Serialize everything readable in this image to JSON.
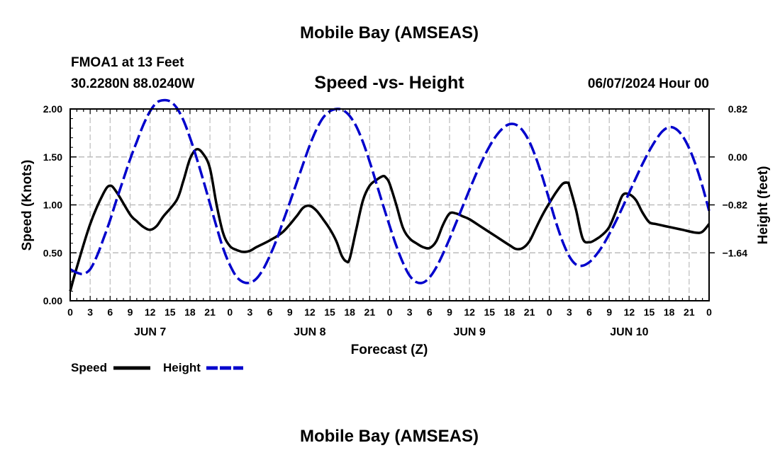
{
  "header": {
    "title": "Mobile Bay (AMSEAS)",
    "station": "FMOA1 at 13 Feet",
    "coords": "30.2280N  88.0240W",
    "chart_title": "Speed -vs- Height",
    "run_time": "06/07/2024 Hour 00",
    "footer_title": "Mobile Bay (AMSEAS)"
  },
  "legend": {
    "items": [
      {
        "label": "Speed",
        "color": "#000000",
        "style": "solid"
      },
      {
        "label": "Height",
        "color": "#0000cc",
        "style": "dashed"
      }
    ]
  },
  "chart_data": {
    "type": "line",
    "title": "Speed -vs- Height",
    "xlabel": "Forecast (Z)",
    "ylabel": "Speed (Knots)",
    "y2label": "Height (feet)",
    "x_range_hours": [
      0,
      96
    ],
    "x_tick_step_hours": 3,
    "x_tick_labels": [
      "0",
      "3",
      "6",
      "9",
      "12",
      "15",
      "18",
      "21",
      "0",
      "3",
      "6",
      "9",
      "12",
      "15",
      "18",
      "21",
      "0",
      "3",
      "6",
      "9",
      "12",
      "15",
      "18",
      "21",
      "0",
      "3",
      "6",
      "9",
      "12",
      "15",
      "18",
      "21",
      "0"
    ],
    "day_labels": [
      {
        "label": "JUN 7",
        "hour": 12
      },
      {
        "label": "JUN 8",
        "hour": 36
      },
      {
        "label": "JUN 9",
        "hour": 60
      },
      {
        "label": "JUN 10",
        "hour": 84
      }
    ],
    "ylim": [
      0,
      2.0
    ],
    "y_ticks": [
      0,
      0.5,
      1.0,
      1.5,
      2.0
    ],
    "y_tick_labels": [
      "0.00",
      "0.50",
      "1.00",
      "1.50",
      "2.00"
    ],
    "y2lim": [
      -2.46,
      0.82
    ],
    "y2_ticks": [
      0.82,
      0.0,
      -0.82,
      -1.64
    ],
    "y2_tick_labels": [
      "0.82",
      "0.00",
      "−0.82",
      "−1.64"
    ],
    "grid": true,
    "series": [
      {
        "name": "Speed",
        "axis": "left",
        "color": "#000000",
        "points": [
          [
            0,
            0.1
          ],
          [
            1,
            0.35
          ],
          [
            3,
            0.8
          ],
          [
            5,
            1.12
          ],
          [
            6,
            1.2
          ],
          [
            7,
            1.13
          ],
          [
            9,
            0.9
          ],
          [
            10,
            0.83
          ],
          [
            11,
            0.77
          ],
          [
            12,
            0.74
          ],
          [
            13,
            0.78
          ],
          [
            14,
            0.88
          ],
          [
            16,
            1.05
          ],
          [
            17,
            1.25
          ],
          [
            18,
            1.48
          ],
          [
            19,
            1.58
          ],
          [
            20,
            1.53
          ],
          [
            21,
            1.38
          ],
          [
            22,
            1.0
          ],
          [
            23,
            0.7
          ],
          [
            24,
            0.57
          ],
          [
            25,
            0.53
          ],
          [
            26,
            0.51
          ],
          [
            27,
            0.52
          ],
          [
            28,
            0.56
          ],
          [
            30,
            0.63
          ],
          [
            32,
            0.72
          ],
          [
            34,
            0.88
          ],
          [
            35,
            0.97
          ],
          [
            36,
            0.99
          ],
          [
            37,
            0.94
          ],
          [
            38,
            0.85
          ],
          [
            39,
            0.75
          ],
          [
            40,
            0.62
          ],
          [
            40.8,
            0.47
          ],
          [
            41.5,
            0.41
          ],
          [
            42,
            0.44
          ],
          [
            43,
            0.75
          ],
          [
            44,
            1.05
          ],
          [
            45,
            1.2
          ],
          [
            46,
            1.26
          ],
          [
            47,
            1.3
          ],
          [
            47.5,
            1.28
          ],
          [
            48,
            1.22
          ],
          [
            49,
            1.0
          ],
          [
            50,
            0.76
          ],
          [
            51,
            0.65
          ],
          [
            52,
            0.6
          ],
          [
            53,
            0.56
          ],
          [
            54,
            0.55
          ],
          [
            55,
            0.62
          ],
          [
            56,
            0.79
          ],
          [
            57,
            0.91
          ],
          [
            58,
            0.91
          ],
          [
            59,
            0.88
          ],
          [
            60,
            0.85
          ],
          [
            62,
            0.76
          ],
          [
            64,
            0.67
          ],
          [
            66,
            0.58
          ],
          [
            67,
            0.54
          ],
          [
            68,
            0.55
          ],
          [
            69,
            0.62
          ],
          [
            70,
            0.76
          ],
          [
            71,
            0.9
          ],
          [
            72,
            1.02
          ],
          [
            73,
            1.13
          ],
          [
            74,
            1.22
          ],
          [
            74.8,
            1.23
          ],
          [
            75,
            1.2
          ],
          [
            76,
            0.95
          ],
          [
            77,
            0.65
          ],
          [
            78,
            0.61
          ],
          [
            79,
            0.64
          ],
          [
            80,
            0.69
          ],
          [
            81,
            0.77
          ],
          [
            82,
            0.93
          ],
          [
            83,
            1.1
          ],
          [
            84,
            1.11
          ],
          [
            85,
            1.05
          ],
          [
            86,
            0.92
          ],
          [
            87,
            0.82
          ],
          [
            88,
            0.8
          ],
          [
            90,
            0.77
          ],
          [
            92,
            0.74
          ],
          [
            94,
            0.71
          ],
          [
            95,
            0.72
          ],
          [
            96,
            0.8
          ]
        ]
      },
      {
        "name": "Height",
        "axis": "right",
        "color": "#0000cc",
        "points": [
          [
            0,
            -1.92
          ],
          [
            1,
            -1.98
          ],
          [
            2,
            -2.0
          ],
          [
            3,
            -1.92
          ],
          [
            4,
            -1.7
          ],
          [
            5,
            -1.4
          ],
          [
            6,
            -1.08
          ],
          [
            7,
            -0.72
          ],
          [
            8,
            -0.38
          ],
          [
            9,
            -0.04
          ],
          [
            10,
            0.26
          ],
          [
            11,
            0.55
          ],
          [
            12,
            0.78
          ],
          [
            13,
            0.93
          ],
          [
            14,
            0.97
          ],
          [
            15,
            0.95
          ],
          [
            16,
            0.84
          ],
          [
            17,
            0.63
          ],
          [
            18,
            0.33
          ],
          [
            19,
            -0.02
          ],
          [
            20,
            -0.4
          ],
          [
            21,
            -0.8
          ],
          [
            22,
            -1.2
          ],
          [
            23,
            -1.57
          ],
          [
            24,
            -1.85
          ],
          [
            25,
            -2.05
          ],
          [
            26,
            -2.14
          ],
          [
            27,
            -2.15
          ],
          [
            28,
            -2.08
          ],
          [
            29,
            -1.92
          ],
          [
            30,
            -1.69
          ],
          [
            31,
            -1.42
          ],
          [
            32,
            -1.1
          ],
          [
            33,
            -0.78
          ],
          [
            34,
            -0.45
          ],
          [
            35,
            -0.12
          ],
          [
            36,
            0.2
          ],
          [
            37,
            0.47
          ],
          [
            38,
            0.67
          ],
          [
            39,
            0.78
          ],
          [
            40,
            0.82
          ],
          [
            41,
            0.8
          ],
          [
            42,
            0.7
          ],
          [
            43,
            0.52
          ],
          [
            44,
            0.25
          ],
          [
            45,
            -0.08
          ],
          [
            46,
            -0.45
          ],
          [
            47,
            -0.82
          ],
          [
            48,
            -1.18
          ],
          [
            49,
            -1.52
          ],
          [
            50,
            -1.81
          ],
          [
            51,
            -2.03
          ],
          [
            52,
            -2.14
          ],
          [
            53,
            -2.15
          ],
          [
            54,
            -2.06
          ],
          [
            55,
            -1.89
          ],
          [
            56,
            -1.66
          ],
          [
            57,
            -1.4
          ],
          [
            58,
            -1.12
          ],
          [
            59,
            -0.84
          ],
          [
            60,
            -0.56
          ],
          [
            61,
            -0.29
          ],
          [
            62,
            -0.04
          ],
          [
            63,
            0.18
          ],
          [
            64,
            0.36
          ],
          [
            65,
            0.49
          ],
          [
            66,
            0.56
          ],
          [
            67,
            0.55
          ],
          [
            68,
            0.45
          ],
          [
            69,
            0.26
          ],
          [
            70,
            -0.02
          ],
          [
            71,
            -0.36
          ],
          [
            72,
            -0.74
          ],
          [
            73,
            -1.12
          ],
          [
            74,
            -1.45
          ],
          [
            75,
            -1.7
          ],
          [
            76,
            -1.84
          ],
          [
            77,
            -1.86
          ],
          [
            78,
            -1.8
          ],
          [
            79,
            -1.68
          ],
          [
            80,
            -1.52
          ],
          [
            81,
            -1.32
          ],
          [
            82,
            -1.1
          ],
          [
            83,
            -0.86
          ],
          [
            84,
            -0.61
          ],
          [
            85,
            -0.36
          ],
          [
            86,
            -0.12
          ],
          [
            87,
            0.1
          ],
          [
            88,
            0.29
          ],
          [
            89,
            0.44
          ],
          [
            90,
            0.51
          ],
          [
            91,
            0.48
          ],
          [
            92,
            0.36
          ],
          [
            93,
            0.15
          ],
          [
            94,
            -0.14
          ],
          [
            95,
            -0.5
          ],
          [
            96,
            -0.92
          ]
        ]
      }
    ]
  }
}
